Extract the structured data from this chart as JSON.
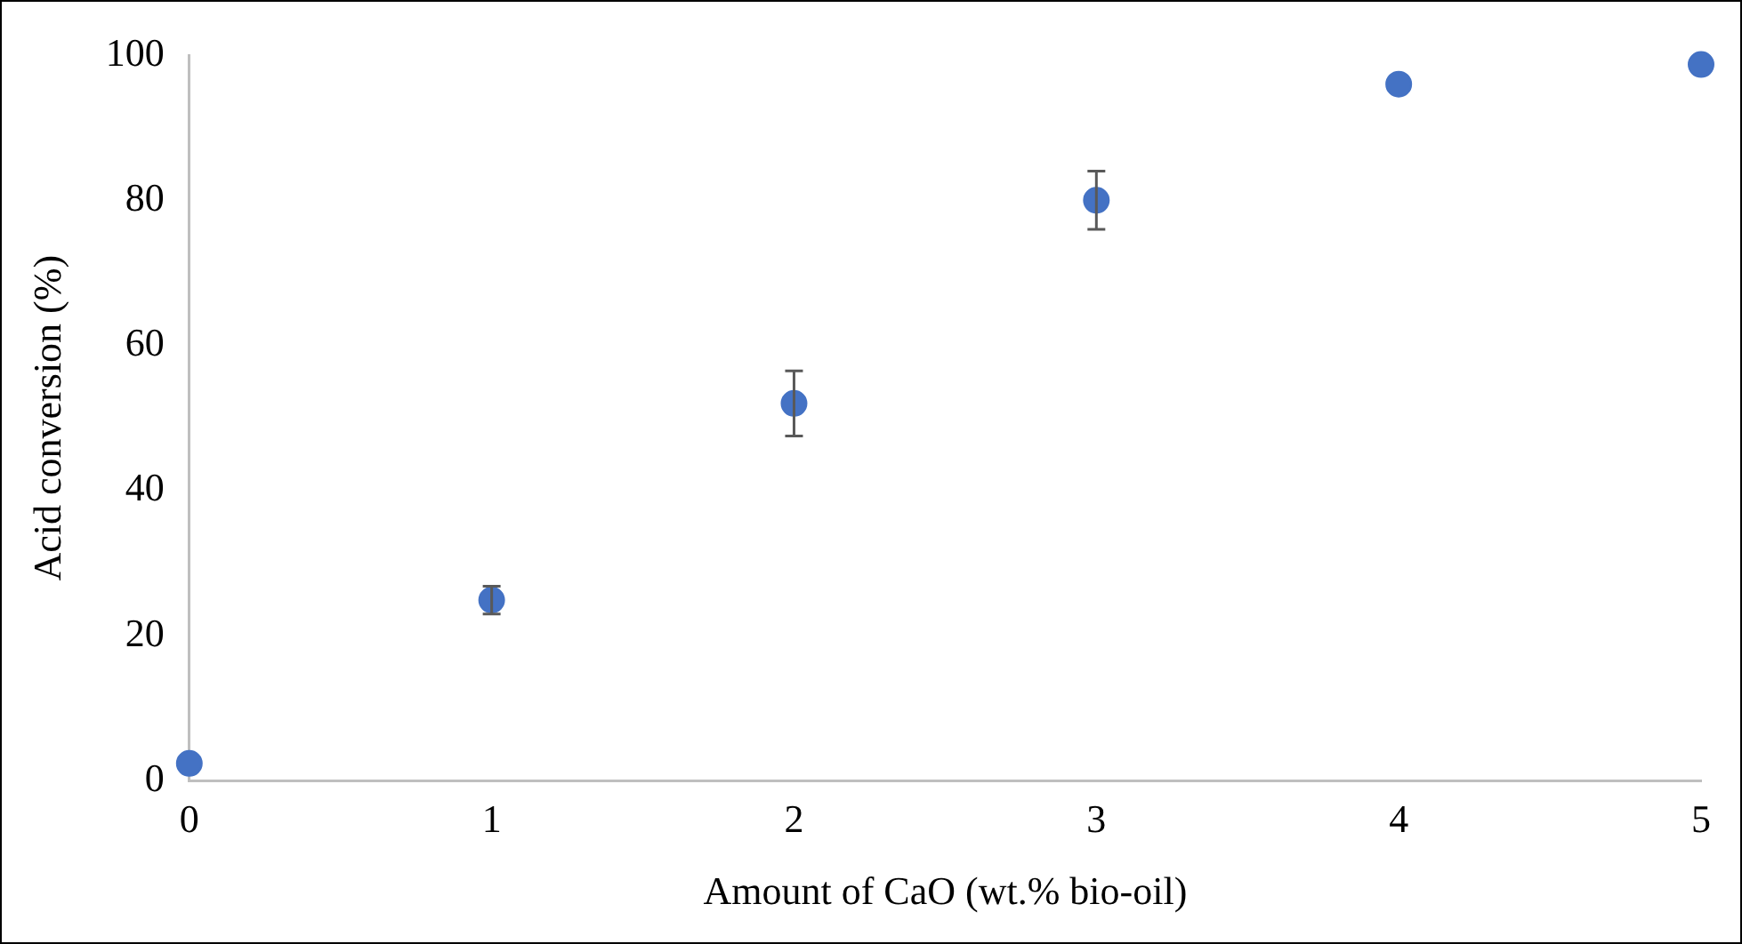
{
  "chart_data": {
    "type": "scatter",
    "xlabel": "Amount of CaO (wt.% bio-oil)",
    "ylabel": "Acid conversion (%)",
    "x": [
      0,
      1,
      2,
      3,
      4,
      5
    ],
    "series": [
      {
        "color": "#4472c4",
        "values": [
          2.4,
          24.9,
          52,
          80,
          96,
          98.7
        ],
        "errors": [
          null,
          1.9,
          4.5,
          4,
          null,
          null
        ]
      }
    ],
    "xlim": [
      0,
      5
    ],
    "xticks": [
      0,
      1,
      2,
      3,
      4,
      5
    ],
    "ylim": [
      0,
      100
    ],
    "yticks": [
      0,
      20,
      40,
      60,
      80,
      100
    ],
    "grid": false,
    "legend": false,
    "marker": "circle"
  }
}
